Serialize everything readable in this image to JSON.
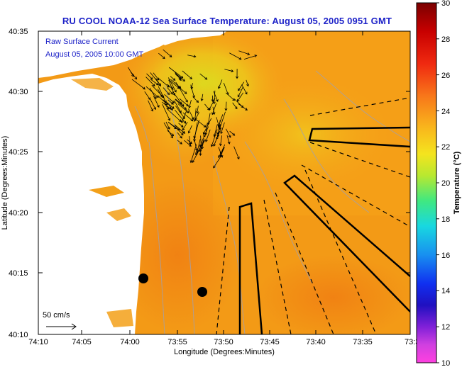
{
  "title": "RU COOL  NOAA-12  Sea Surface Temperature:  August 05, 2005 0951 GMT",
  "current_legend": {
    "line1": "Raw Surface Current",
    "line2": "August 05, 2005 10:00 GMT"
  },
  "scale_label": "50 cm/s",
  "x_axis": {
    "label": "Longitude (Degrees:Minutes)",
    "ticks": [
      "74:10",
      "74:05",
      "74:00",
      "73:55",
      "73:50",
      "73:45",
      "73:40",
      "73:35",
      "73:3"
    ]
  },
  "y_axis": {
    "label": "Latitude (Degrees:Minutes)",
    "ticks": [
      "40:35",
      "40:30",
      "40:25",
      "40:20",
      "40:15",
      "40:10"
    ]
  },
  "colorbar": {
    "label": "Temperature (°C)",
    "ticks": [
      "30",
      "28",
      "26",
      "24",
      "22",
      "20",
      "18",
      "16",
      "14",
      "12",
      "10"
    ]
  },
  "colors": {
    "title": "#1d22c8",
    "sea_warm": "#f39a16",
    "sea_cool": "#e8c21c",
    "land": "#ffffff"
  }
}
